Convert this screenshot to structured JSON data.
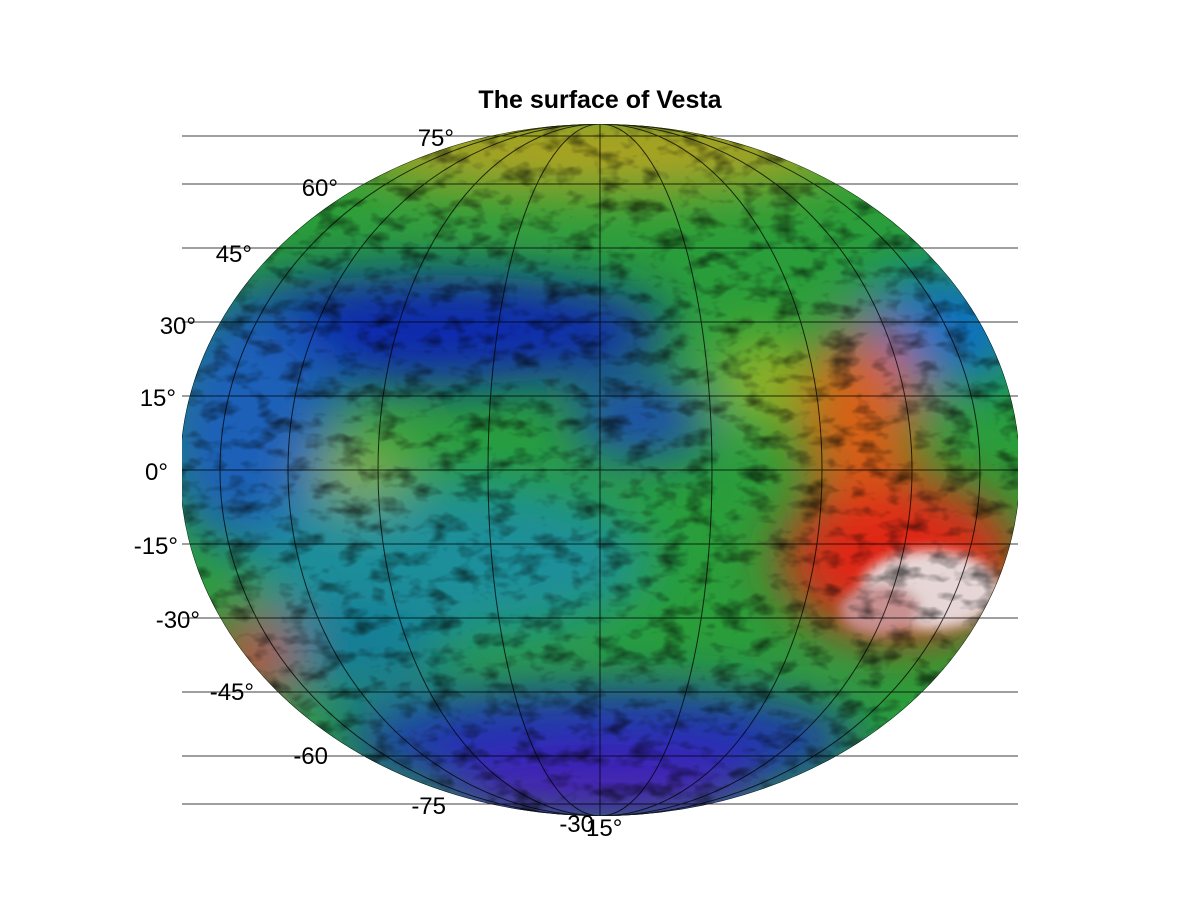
{
  "title": "The surface of Vesta",
  "projection": "hammer",
  "grid": true,
  "colors": {
    "grid": "#000000"
  },
  "latitude_ticks": [
    "75°",
    "60°",
    "45°",
    "30°",
    "15°",
    "0°",
    "-15°",
    "-30°",
    "-45°",
    "-60",
    "-75"
  ],
  "longitude_ticks": [
    "-30",
    "15°"
  ]
}
